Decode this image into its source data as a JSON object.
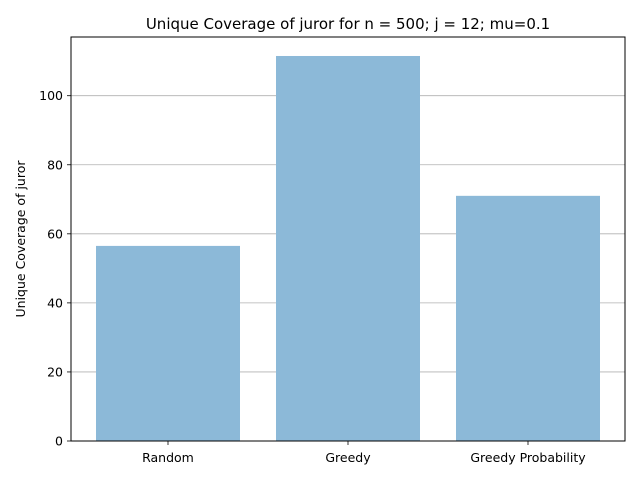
{
  "chart_data": {
    "type": "bar",
    "title": "Unique Coverage of juror for n = 500; j = 12; mu=0.1",
    "xlabel": "",
    "ylabel": "Unique Coverage of juror",
    "categories": [
      "Random",
      "Greedy",
      "Greedy Probability"
    ],
    "values": [
      56.5,
      111.5,
      71.0
    ],
    "ylim": [
      0,
      117
    ],
    "yticks": [
      0,
      20,
      40,
      60,
      80,
      100
    ],
    "grid": "y-axis",
    "legend": "none",
    "bar_color": "#8cb9d8",
    "grid_color": "#b0b0b0"
  }
}
